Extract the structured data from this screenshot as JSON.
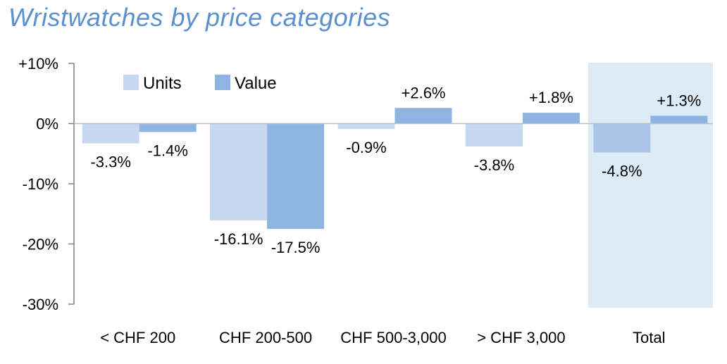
{
  "chart_data": {
    "type": "bar",
    "title": "Wristwatches by price categories",
    "categories": [
      "< CHF 200",
      "CHF 200-500",
      "CHF 500-3,000",
      "> CHF 3,000",
      "Total"
    ],
    "series": [
      {
        "name": "Units",
        "values": [
          -3.3,
          -16.1,
          -0.9,
          -3.8,
          -4.8
        ],
        "labels": [
          "-3.3%",
          "-16.1%",
          "-0.9%",
          "-3.8%",
          "-4.8%"
        ],
        "color": "#c6d9f1",
        "highlight_color": "#a9c6e6"
      },
      {
        "name": "Value",
        "values": [
          -1.4,
          -17.5,
          2.6,
          1.8,
          1.3
        ],
        "labels": [
          "-1.4%",
          "-17.5%",
          "+2.6%",
          "+1.8%",
          "+1.3%"
        ],
        "color": "#8db4e2",
        "highlight_color": "#8db4e2"
      }
    ],
    "ylim": [
      -30,
      10
    ],
    "yticks": [
      10,
      0,
      -10,
      -20,
      -30
    ],
    "ytick_labels": [
      "+10%",
      "0%",
      "-10%",
      "-20%",
      "-30%"
    ],
    "highlighted_category": "Total",
    "highlight_color": "#ddebf6",
    "legend_position": "top-left",
    "grid": false
  }
}
